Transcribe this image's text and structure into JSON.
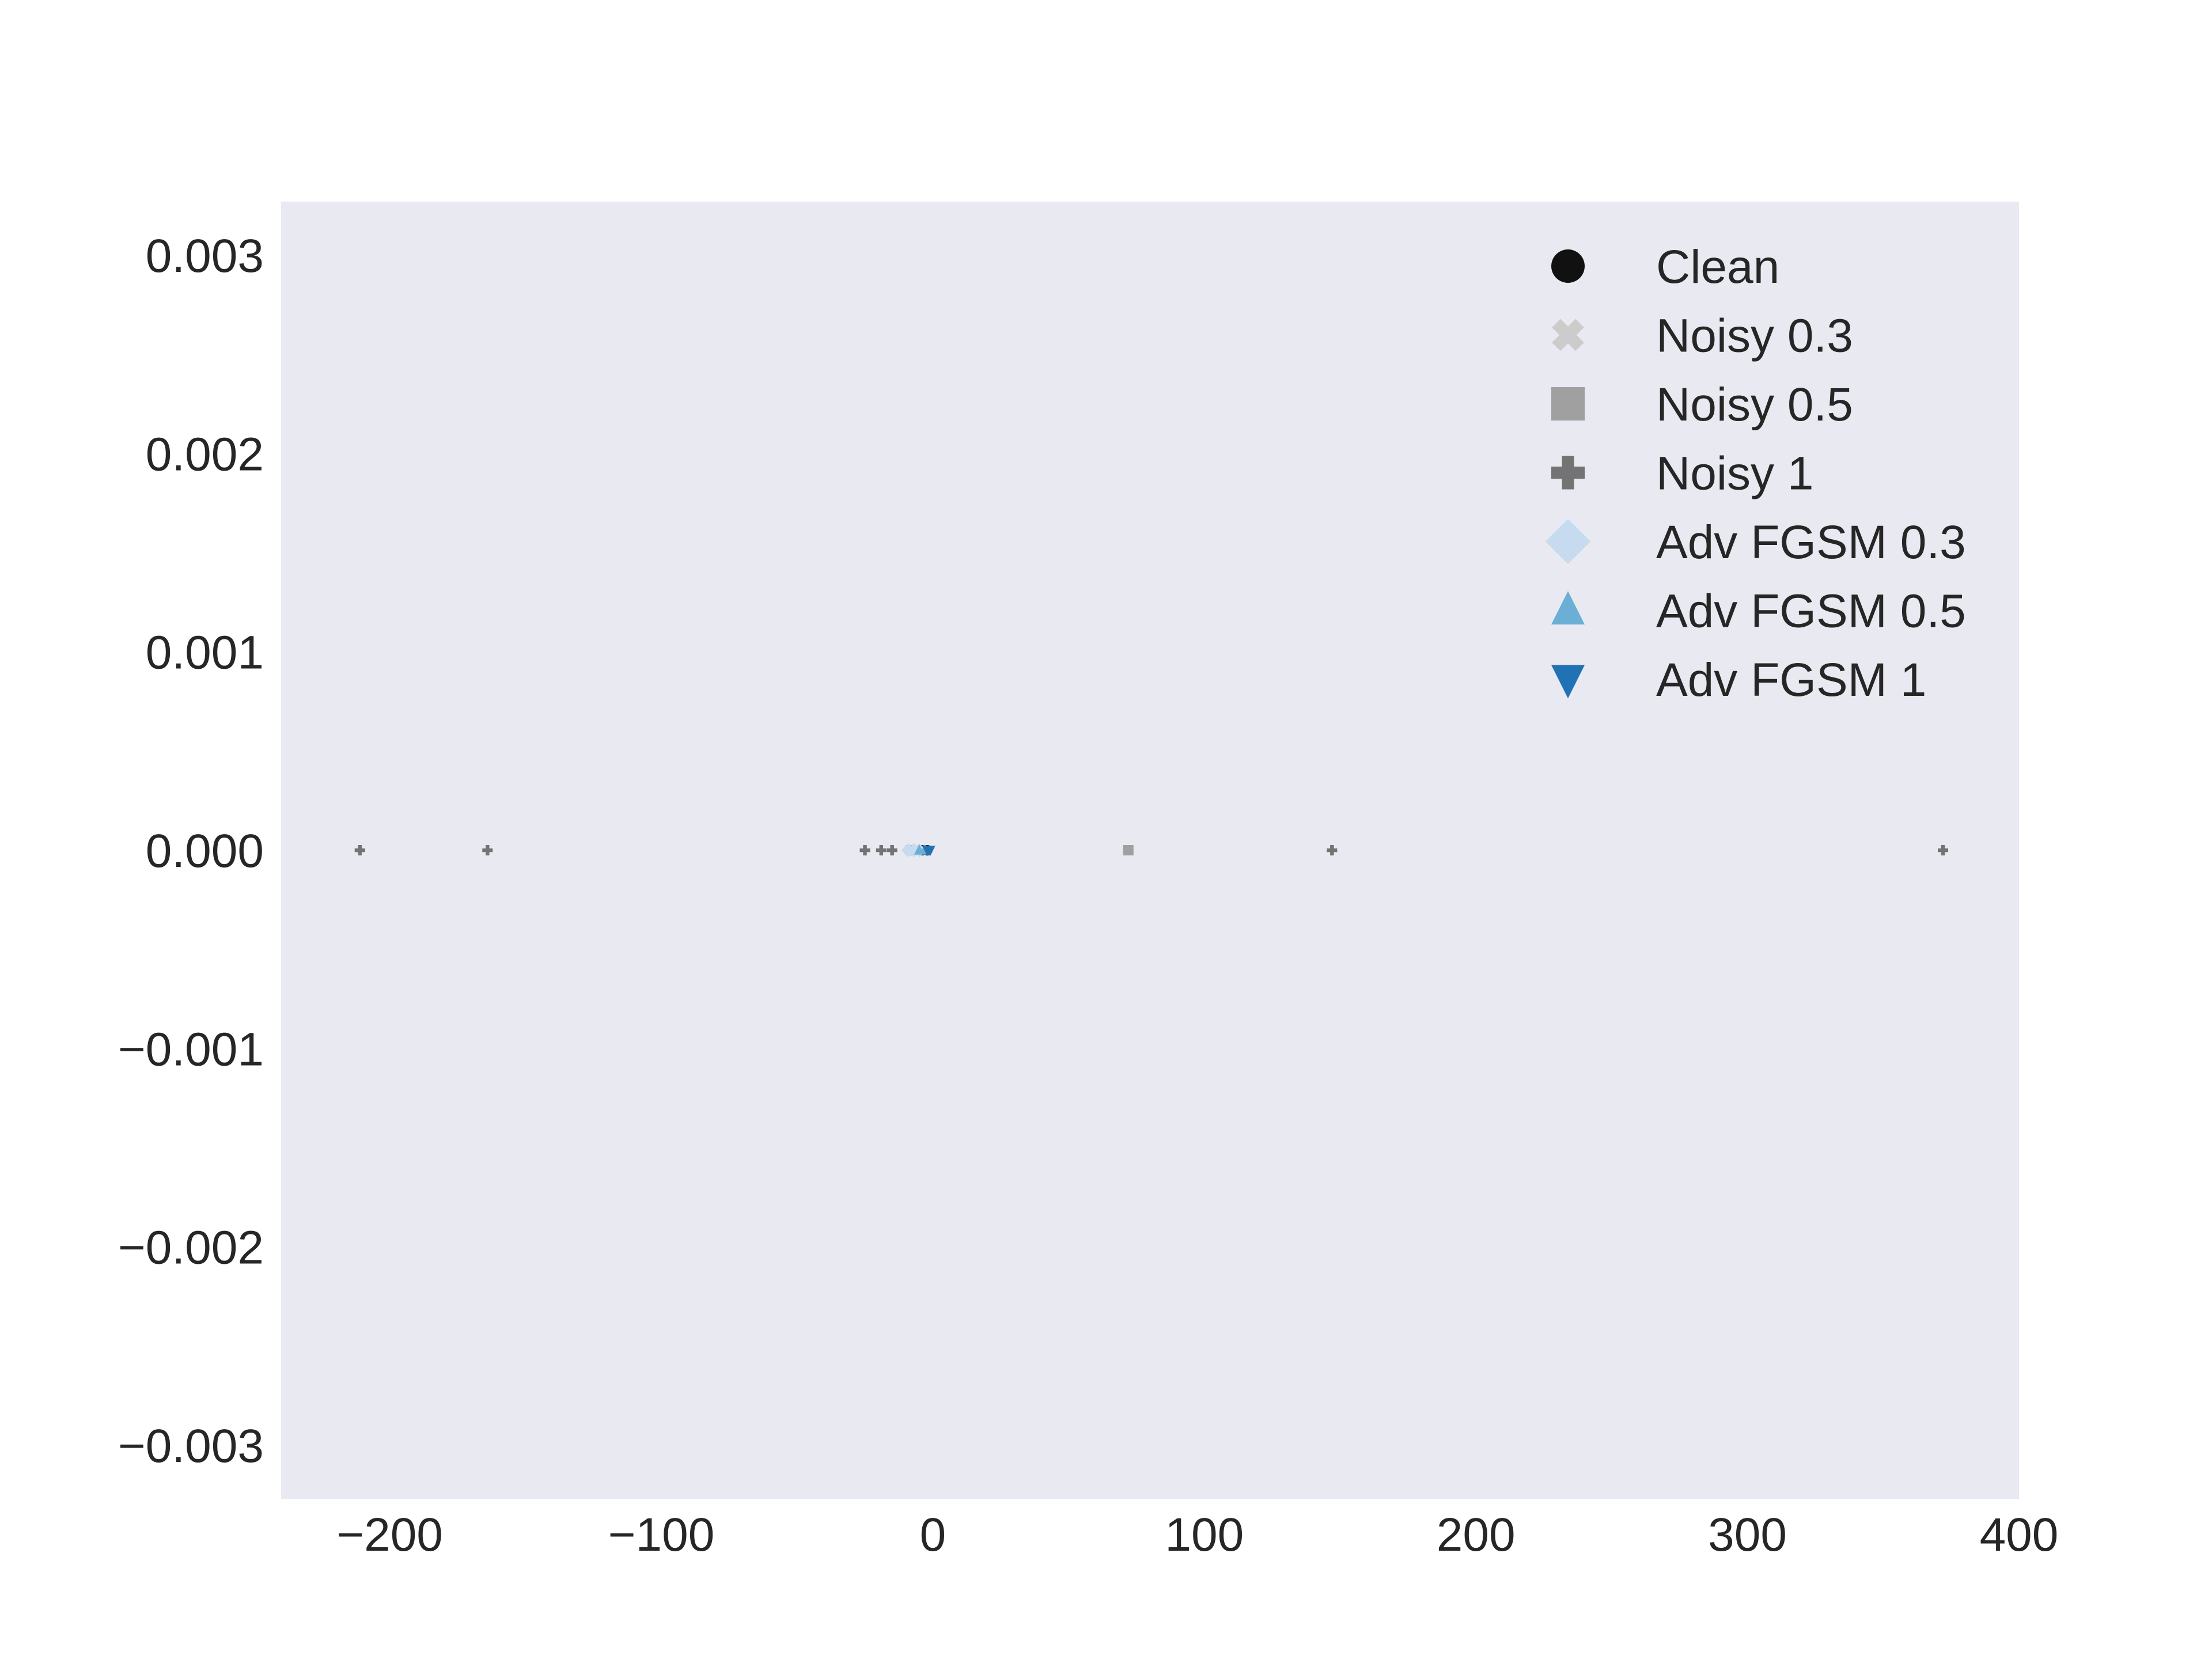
{
  "chart_data": {
    "type": "scatter",
    "title": "",
    "xlabel": "",
    "ylabel": "",
    "xlim": [
      -240,
      400
    ],
    "ylim": [
      -0.00327,
      0.00327
    ],
    "x_ticks": [
      -200,
      -100,
      0,
      100,
      200,
      300,
      400
    ],
    "x_tick_labels": [
      "−200",
      "−100",
      "0",
      "100",
      "200",
      "300",
      "400"
    ],
    "y_ticks": [
      0.003,
      0.002,
      0.001,
      0.0,
      -0.001,
      -0.002,
      -0.003
    ],
    "y_tick_labels": [
      "0.003",
      "0.002",
      "0.001",
      "0.000",
      "−0.001",
      "−0.002",
      "−0.003"
    ],
    "grid": false,
    "background_color": "#e9e9f1",
    "legend_position": "upper-right",
    "series": [
      {
        "name": "Clean",
        "marker": "circle",
        "color": "#111111",
        "points": [
          {
            "x": -2,
            "y": 0
          },
          {
            "x": -4,
            "y": 0
          }
        ]
      },
      {
        "name": "Noisy 0.3",
        "marker": "x",
        "color": "#cccccc",
        "points": [
          {
            "x": -6,
            "y": 0
          },
          {
            "x": -9,
            "y": 0
          }
        ]
      },
      {
        "name": "Noisy 0.5",
        "marker": "square",
        "color": "#a0a0a0",
        "points": [
          {
            "x": 72,
            "y": 0
          },
          {
            "x": -8,
            "y": 0
          }
        ]
      },
      {
        "name": "Noisy 1",
        "marker": "plus",
        "color": "#737373",
        "points": [
          {
            "x": -211,
            "y": 0
          },
          {
            "x": -164,
            "y": 0
          },
          {
            "x": -25,
            "y": 0
          },
          {
            "x": -19,
            "y": 0
          },
          {
            "x": -15,
            "y": 0
          },
          {
            "x": 147,
            "y": 0
          },
          {
            "x": 372,
            "y": 0
          }
        ]
      },
      {
        "name": "Adv FGSM 0.3",
        "marker": "diamond",
        "color": "#c6dbef",
        "points": [
          {
            "x": -9,
            "y": 0
          },
          {
            "x": -7,
            "y": 0
          },
          {
            "x": -5,
            "y": 0
          }
        ]
      },
      {
        "name": "Adv FGSM 0.5",
        "marker": "triangle-up",
        "color": "#6baed6",
        "points": [
          {
            "x": -5,
            "y": 0
          },
          {
            "x": -3,
            "y": 0
          }
        ]
      },
      {
        "name": "Adv FGSM 1",
        "marker": "triangle-down",
        "color": "#2171b5",
        "points": [
          {
            "x": -2,
            "y": 0
          },
          {
            "x": -1,
            "y": 0
          }
        ]
      }
    ]
  }
}
